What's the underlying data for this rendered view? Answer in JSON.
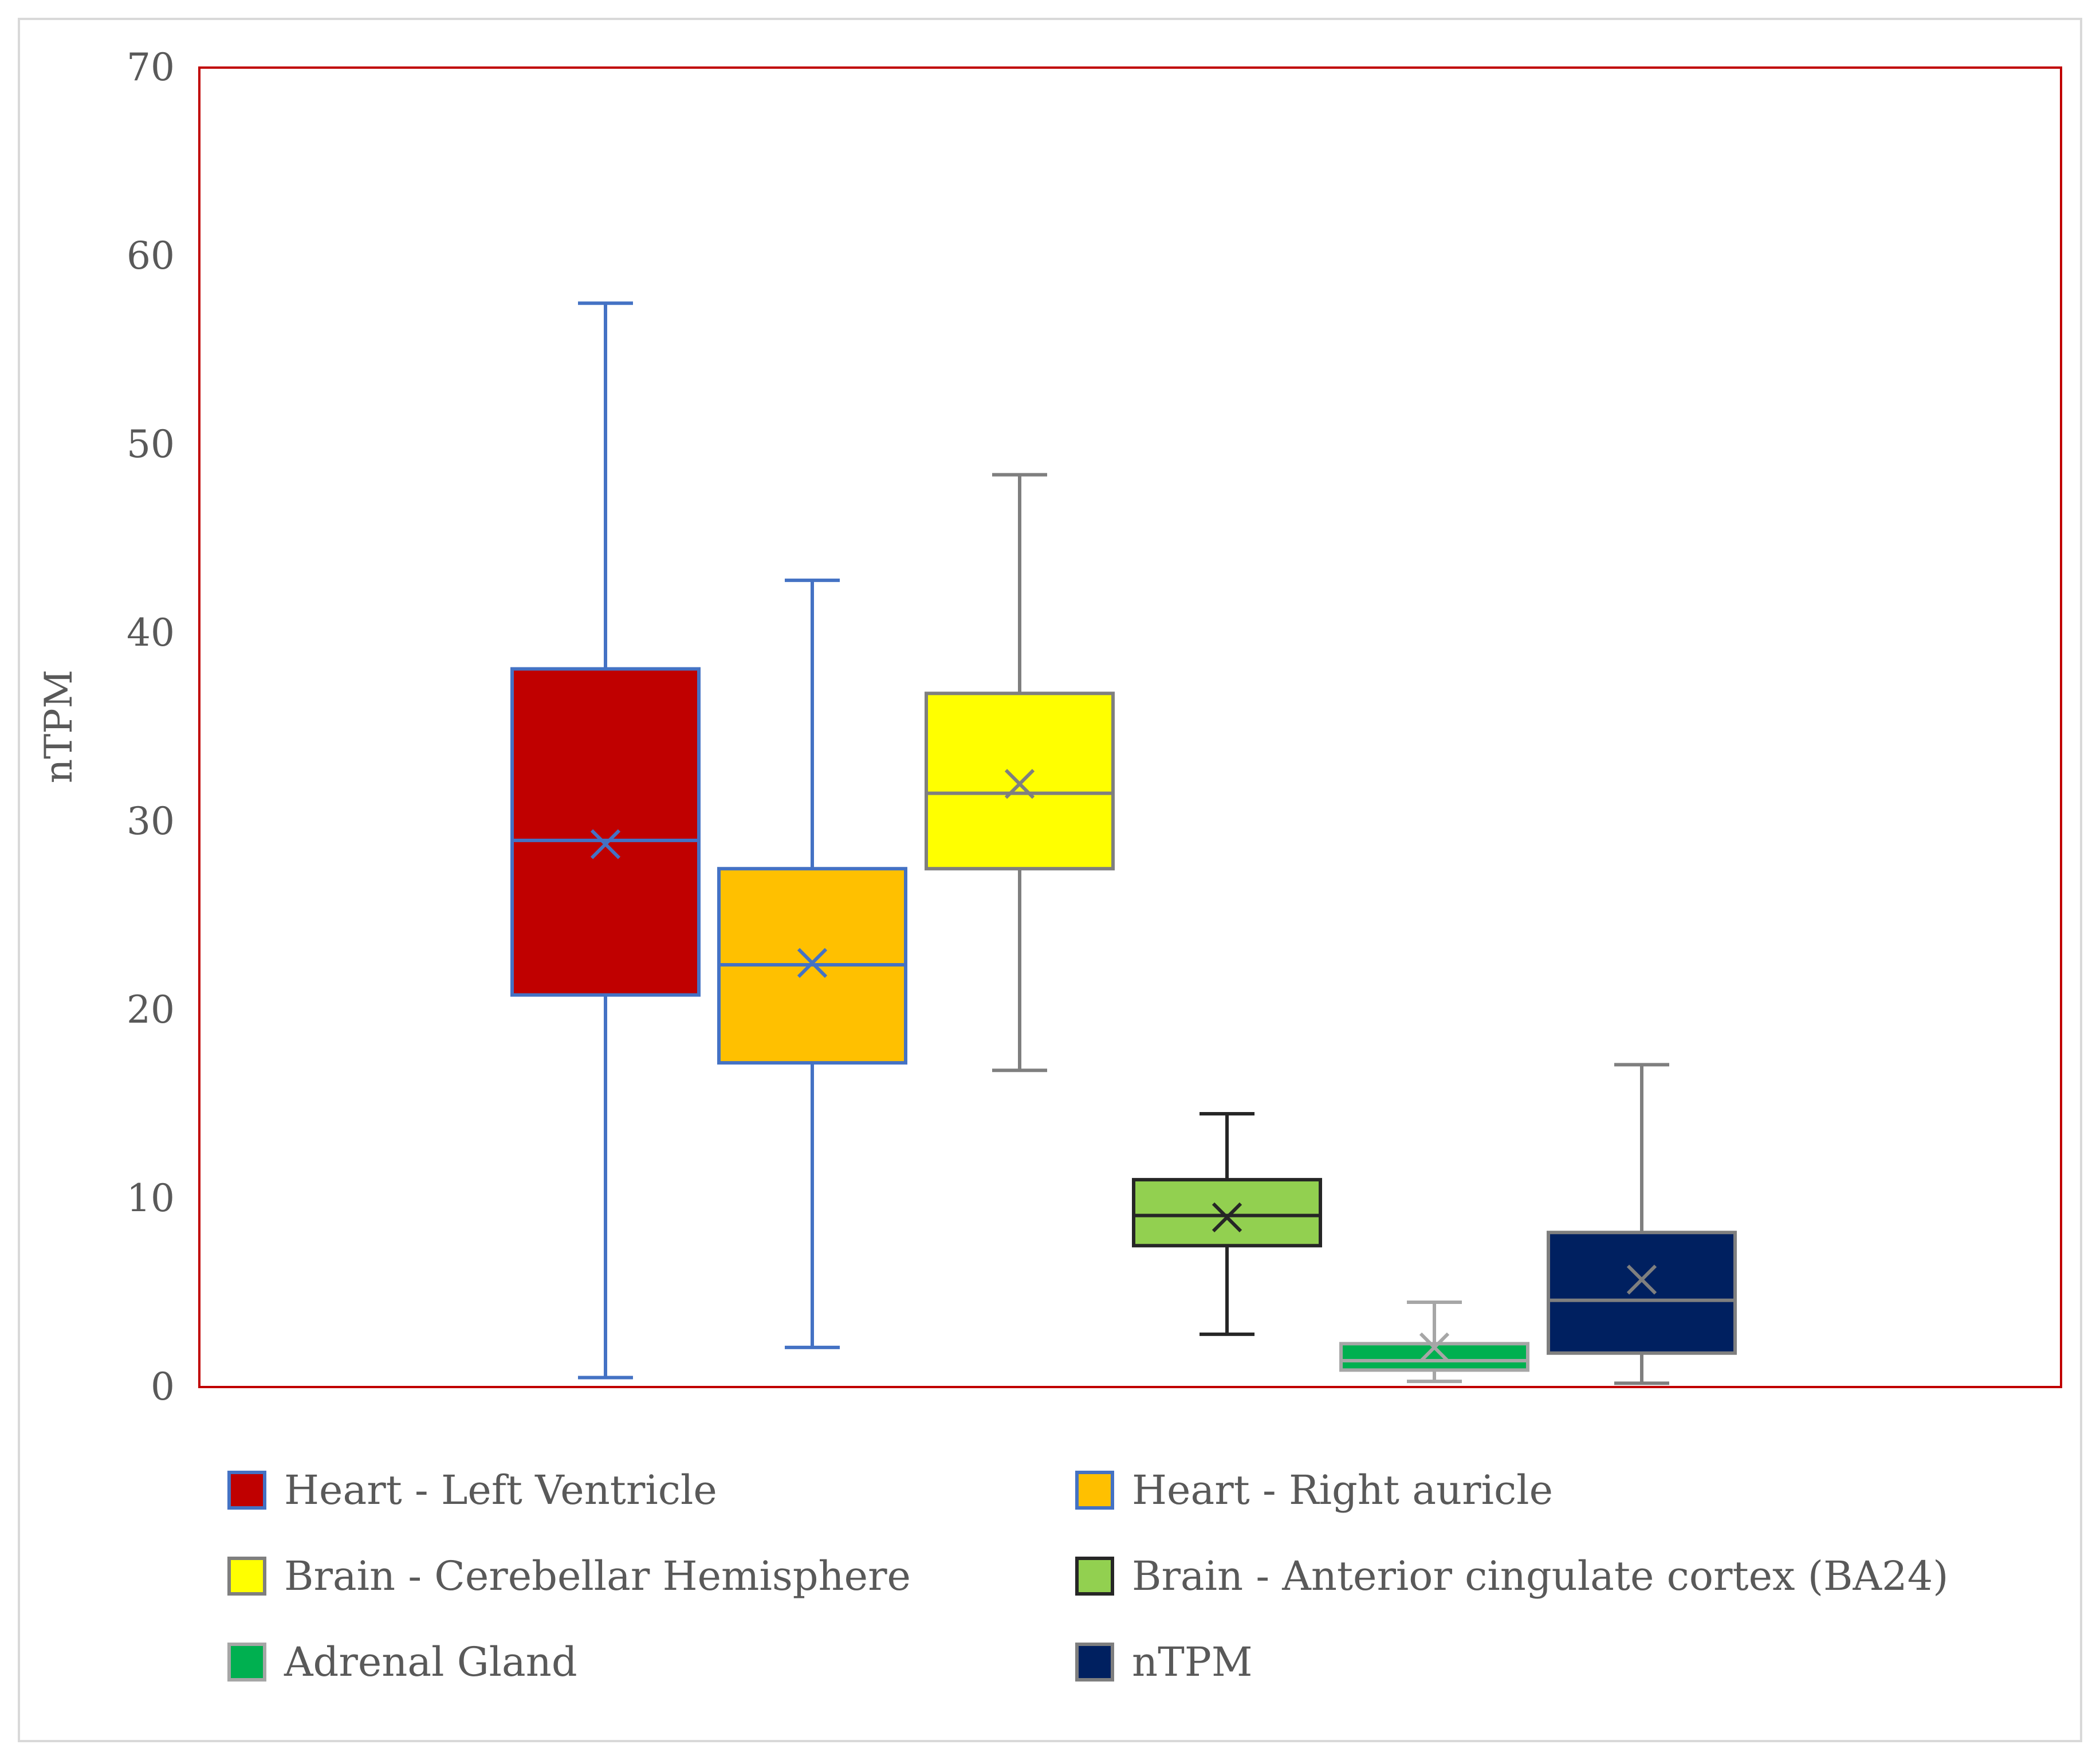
{
  "chart_data": {
    "type": "boxplot",
    "title": "",
    "ylabel": "nTPM",
    "xlabel": "",
    "ylim": [
      0,
      70
    ],
    "yticks": [
      0,
      10,
      20,
      30,
      40,
      50,
      60,
      70
    ],
    "ytick_labels": [
      "0",
      "10",
      "20",
      "30",
      "40",
      "50",
      "60",
      "70"
    ],
    "grid": false,
    "legend_position": "bottom",
    "series": [
      {
        "name": "Heart - Left Ventricle",
        "min": 0.5,
        "q1": 20.8,
        "median": 29.0,
        "q3": 38.1,
        "max": 57.5,
        "mean": 28.8,
        "fill": "#C00000",
        "stroke": "#4472C4"
      },
      {
        "name": "Heart - Right auricle",
        "min": 2.1,
        "q1": 17.2,
        "median": 22.4,
        "q3": 27.5,
        "max": 42.8,
        "mean": 22.5,
        "fill": "#FFC000",
        "stroke": "#4472C4"
      },
      {
        "name": "Brain - Cerebellar Hemisphere",
        "min": 16.8,
        "q1": 27.5,
        "median": 31.5,
        "q3": 36.8,
        "max": 48.4,
        "mean": 32.0,
        "fill": "#FFFF00",
        "stroke": "#7F7F7F"
      },
      {
        "name": "Brain - Anterior cingulate cortex (BA24)",
        "min": 2.8,
        "q1": 7.5,
        "median": 9.1,
        "q3": 11.0,
        "max": 14.5,
        "mean": 9.0,
        "fill": "#92D050",
        "stroke": "#262626"
      },
      {
        "name": "Adrenal Gland",
        "min": 0.3,
        "q1": 0.9,
        "median": 1.4,
        "q3": 2.3,
        "max": 4.5,
        "mean": 2.1,
        "fill": "#00B050",
        "stroke": "#A6A6A6"
      },
      {
        "name": "nTPM",
        "min": 0.2,
        "q1": 1.8,
        "median": 4.6,
        "q3": 8.2,
        "max": 17.1,
        "mean": 5.7,
        "fill": "#002060",
        "stroke": "#7F7F7F"
      }
    ]
  },
  "colors": {
    "plot_border": "#C00000",
    "outer_border": "#D9D9D9",
    "text": "#595959"
  }
}
